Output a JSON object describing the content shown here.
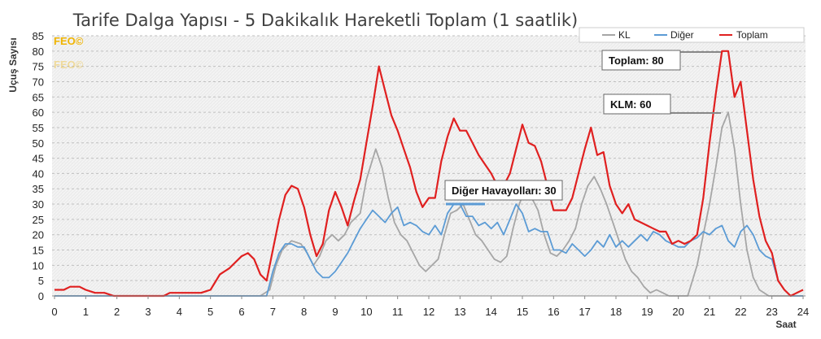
{
  "chart_data": {
    "type": "line",
    "title": "Tarife Dalga Yapısı - 5 Dakikalık Hareketli Toplam (1 saatlik)",
    "xlabel": "Saat",
    "ylabel": "Uçuş Sayısı",
    "xlim": [
      0,
      24
    ],
    "ylim": [
      0,
      85
    ],
    "x_ticks": [
      "0",
      "1",
      "2",
      "3",
      "4",
      "5",
      "6",
      "7",
      "8",
      "9",
      "10",
      "11",
      "12",
      "13",
      "14",
      "15",
      "16",
      "17",
      "18",
      "19",
      "20",
      "21",
      "22",
      "23",
      "24"
    ],
    "y_ticks": [
      "0",
      "5",
      "10",
      "15",
      "20",
      "25",
      "30",
      "35",
      "40",
      "45",
      "50",
      "55",
      "60",
      "65",
      "70",
      "75",
      "80",
      "85"
    ],
    "grid": "horizontal dashed",
    "legend_position": "top-right",
    "watermark": [
      "FEO©",
      "FEO©"
    ],
    "series": [
      {
        "name": "KL",
        "color": "#a6a6a6",
        "points": [
          [
            0,
            0
          ],
          [
            6.2,
            0
          ],
          [
            6.6,
            0
          ],
          [
            6.9,
            2
          ],
          [
            7.1,
            10
          ],
          [
            7.3,
            15
          ],
          [
            7.6,
            18
          ],
          [
            7.9,
            17
          ],
          [
            8.1,
            14
          ],
          [
            8.3,
            10
          ],
          [
            8.5,
            13
          ],
          [
            8.7,
            18
          ],
          [
            8.9,
            20
          ],
          [
            9.1,
            18
          ],
          [
            9.3,
            20
          ],
          [
            9.5,
            24
          ],
          [
            9.8,
            27
          ],
          [
            10.0,
            38
          ],
          [
            10.3,
            48
          ],
          [
            10.5,
            42
          ],
          [
            10.7,
            32
          ],
          [
            10.9,
            24
          ],
          [
            11.1,
            20
          ],
          [
            11.3,
            18
          ],
          [
            11.5,
            14
          ],
          [
            11.7,
            10
          ],
          [
            11.9,
            8
          ],
          [
            12.1,
            10
          ],
          [
            12.3,
            12
          ],
          [
            12.5,
            20
          ],
          [
            12.7,
            27
          ],
          [
            12.9,
            28
          ],
          [
            13.1,
            30
          ],
          [
            13.3,
            25
          ],
          [
            13.5,
            20
          ],
          [
            13.7,
            18
          ],
          [
            13.9,
            15
          ],
          [
            14.1,
            12
          ],
          [
            14.3,
            11
          ],
          [
            14.5,
            13
          ],
          [
            14.7,
            22
          ],
          [
            14.9,
            30
          ],
          [
            15.1,
            35
          ],
          [
            15.3,
            32
          ],
          [
            15.5,
            28
          ],
          [
            15.7,
            20
          ],
          [
            15.9,
            14
          ],
          [
            16.1,
            13
          ],
          [
            16.3,
            15
          ],
          [
            16.5,
            18
          ],
          [
            16.7,
            22
          ],
          [
            16.9,
            30
          ],
          [
            17.1,
            36
          ],
          [
            17.3,
            39
          ],
          [
            17.5,
            35
          ],
          [
            17.7,
            30
          ],
          [
            17.9,
            24
          ],
          [
            18.1,
            18
          ],
          [
            18.3,
            12
          ],
          [
            18.5,
            8
          ],
          [
            18.7,
            6
          ],
          [
            18.9,
            3
          ],
          [
            19.1,
            1
          ],
          [
            19.3,
            2
          ],
          [
            19.5,
            1
          ],
          [
            19.7,
            0
          ],
          [
            20.3,
            0
          ],
          [
            20.6,
            10
          ],
          [
            20.8,
            20
          ],
          [
            21.0,
            30
          ],
          [
            21.2,
            42
          ],
          [
            21.4,
            55
          ],
          [
            21.6,
            60
          ],
          [
            21.8,
            48
          ],
          [
            22.0,
            30
          ],
          [
            22.2,
            15
          ],
          [
            22.4,
            6
          ],
          [
            22.6,
            2
          ],
          [
            22.9,
            0
          ],
          [
            24,
            0
          ]
        ]
      },
      {
        "name": "Diğer",
        "color": "#5b9bd5",
        "points": [
          [
            0,
            0
          ],
          [
            6.8,
            0
          ],
          [
            7.0,
            8
          ],
          [
            7.2,
            14
          ],
          [
            7.4,
            17
          ],
          [
            7.6,
            17
          ],
          [
            7.8,
            16
          ],
          [
            8.0,
            16
          ],
          [
            8.2,
            12
          ],
          [
            8.4,
            8
          ],
          [
            8.6,
            6
          ],
          [
            8.8,
            6
          ],
          [
            9.0,
            8
          ],
          [
            9.2,
            11
          ],
          [
            9.4,
            14
          ],
          [
            9.6,
            18
          ],
          [
            9.8,
            22
          ],
          [
            10.0,
            25
          ],
          [
            10.2,
            28
          ],
          [
            10.4,
            26
          ],
          [
            10.6,
            24
          ],
          [
            10.8,
            27
          ],
          [
            11.0,
            29
          ],
          [
            11.2,
            23
          ],
          [
            11.4,
            24
          ],
          [
            11.6,
            23
          ],
          [
            11.8,
            21
          ],
          [
            12.0,
            20
          ],
          [
            12.2,
            23
          ],
          [
            12.4,
            20
          ],
          [
            12.6,
            27
          ],
          [
            12.8,
            30
          ],
          [
            13.0,
            30
          ],
          [
            13.2,
            26
          ],
          [
            13.4,
            26
          ],
          [
            13.6,
            23
          ],
          [
            13.8,
            24
          ],
          [
            14.0,
            22
          ],
          [
            14.2,
            24
          ],
          [
            14.4,
            20
          ],
          [
            14.6,
            25
          ],
          [
            14.8,
            30
          ],
          [
            15.0,
            27
          ],
          [
            15.2,
            21
          ],
          [
            15.4,
            22
          ],
          [
            15.6,
            21
          ],
          [
            15.8,
            21
          ],
          [
            16.0,
            15
          ],
          [
            16.2,
            15
          ],
          [
            16.4,
            14
          ],
          [
            16.6,
            17
          ],
          [
            16.8,
            15
          ],
          [
            17.0,
            13
          ],
          [
            17.2,
            15
          ],
          [
            17.4,
            18
          ],
          [
            17.6,
            16
          ],
          [
            17.8,
            20
          ],
          [
            18.0,
            16
          ],
          [
            18.2,
            18
          ],
          [
            18.4,
            16
          ],
          [
            18.6,
            18
          ],
          [
            18.8,
            20
          ],
          [
            19.0,
            18
          ],
          [
            19.2,
            21
          ],
          [
            19.4,
            20
          ],
          [
            19.6,
            18
          ],
          [
            19.8,
            17
          ],
          [
            20.0,
            16
          ],
          [
            20.2,
            16
          ],
          [
            20.4,
            18
          ],
          [
            20.6,
            19
          ],
          [
            20.8,
            21
          ],
          [
            21.0,
            20
          ],
          [
            21.2,
            22
          ],
          [
            21.4,
            23
          ],
          [
            21.6,
            18
          ],
          [
            21.8,
            16
          ],
          [
            22.0,
            21
          ],
          [
            22.2,
            23
          ],
          [
            22.4,
            20
          ],
          [
            22.6,
            15
          ],
          [
            22.8,
            13
          ],
          [
            23.0,
            12
          ],
          [
            23.2,
            5
          ],
          [
            23.4,
            2
          ],
          [
            23.6,
            0
          ],
          [
            24,
            0
          ]
        ]
      },
      {
        "name": "Toplam",
        "color": "#e02020",
        "points": [
          [
            0,
            2
          ],
          [
            0.3,
            2
          ],
          [
            0.5,
            3
          ],
          [
            0.8,
            3
          ],
          [
            1.0,
            2
          ],
          [
            1.3,
            1
          ],
          [
            1.6,
            1
          ],
          [
            1.9,
            0
          ],
          [
            3.5,
            0
          ],
          [
            3.7,
            1
          ],
          [
            4.0,
            1
          ],
          [
            4.7,
            1
          ],
          [
            5.0,
            2
          ],
          [
            5.3,
            7
          ],
          [
            5.6,
            9
          ],
          [
            5.8,
            11
          ],
          [
            6.0,
            13
          ],
          [
            6.2,
            14
          ],
          [
            6.4,
            12
          ],
          [
            6.6,
            7
          ],
          [
            6.8,
            5
          ],
          [
            7.0,
            15
          ],
          [
            7.2,
            25
          ],
          [
            7.4,
            33
          ],
          [
            7.6,
            36
          ],
          [
            7.8,
            35
          ],
          [
            8.0,
            29
          ],
          [
            8.2,
            20
          ],
          [
            8.4,
            13
          ],
          [
            8.6,
            17
          ],
          [
            8.8,
            28
          ],
          [
            9.0,
            34
          ],
          [
            9.2,
            29
          ],
          [
            9.4,
            23
          ],
          [
            9.6,
            31
          ],
          [
            9.8,
            38
          ],
          [
            10.0,
            50
          ],
          [
            10.2,
            62
          ],
          [
            10.4,
            75
          ],
          [
            10.6,
            67
          ],
          [
            10.8,
            59
          ],
          [
            11.0,
            54
          ],
          [
            11.2,
            48
          ],
          [
            11.4,
            42
          ],
          [
            11.6,
            34
          ],
          [
            11.8,
            29
          ],
          [
            12.0,
            32
          ],
          [
            12.2,
            32
          ],
          [
            12.4,
            44
          ],
          [
            12.6,
            52
          ],
          [
            12.8,
            58
          ],
          [
            13.0,
            54
          ],
          [
            13.2,
            54
          ],
          [
            13.4,
            50
          ],
          [
            13.6,
            46
          ],
          [
            13.8,
            43
          ],
          [
            14.0,
            40
          ],
          [
            14.2,
            36
          ],
          [
            14.4,
            36
          ],
          [
            14.6,
            40
          ],
          [
            14.8,
            48
          ],
          [
            15.0,
            56
          ],
          [
            15.2,
            50
          ],
          [
            15.4,
            49
          ],
          [
            15.6,
            44
          ],
          [
            15.8,
            36
          ],
          [
            16.0,
            28
          ],
          [
            16.2,
            28
          ],
          [
            16.4,
            28
          ],
          [
            16.6,
            32
          ],
          [
            16.8,
            40
          ],
          [
            17.0,
            48
          ],
          [
            17.2,
            55
          ],
          [
            17.4,
            46
          ],
          [
            17.6,
            47
          ],
          [
            17.8,
            36
          ],
          [
            18.0,
            30
          ],
          [
            18.2,
            27
          ],
          [
            18.4,
            30
          ],
          [
            18.6,
            25
          ],
          [
            18.8,
            24
          ],
          [
            19.0,
            23
          ],
          [
            19.2,
            22
          ],
          [
            19.4,
            21
          ],
          [
            19.6,
            21
          ],
          [
            19.8,
            17
          ],
          [
            20.0,
            18
          ],
          [
            20.2,
            17
          ],
          [
            20.4,
            18
          ],
          [
            20.6,
            20
          ],
          [
            20.8,
            32
          ],
          [
            21.0,
            50
          ],
          [
            21.2,
            66
          ],
          [
            21.4,
            80
          ],
          [
            21.6,
            80
          ],
          [
            21.8,
            65
          ],
          [
            22.0,
            70
          ],
          [
            22.2,
            54
          ],
          [
            22.4,
            38
          ],
          [
            22.6,
            26
          ],
          [
            22.8,
            18
          ],
          [
            23.0,
            14
          ],
          [
            23.2,
            5
          ],
          [
            23.4,
            2
          ],
          [
            23.6,
            0
          ],
          [
            23.8,
            1
          ],
          [
            24,
            2
          ]
        ]
      }
    ],
    "annotations": [
      {
        "text": "Toplam: 80",
        "x": 21.5,
        "y": 80
      },
      {
        "text": "KLM: 60",
        "x": 21.5,
        "y": 60
      },
      {
        "text": "Diğer Havayolları: 30",
        "x": 13.0,
        "y": 30
      }
    ]
  }
}
